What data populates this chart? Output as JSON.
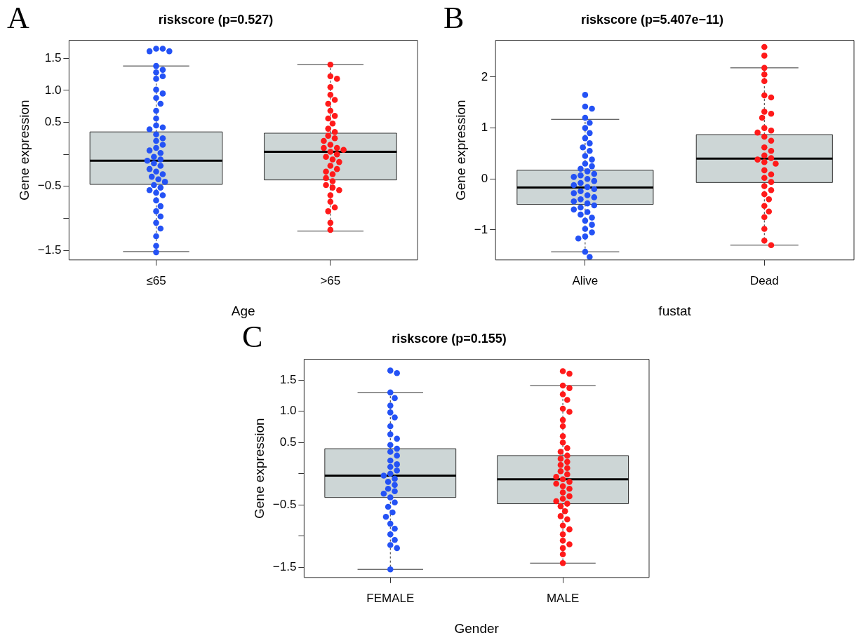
{
  "chart_data": [
    {
      "type": "box",
      "title": "riskscore (p=0.527)",
      "xlabel": "Age",
      "ylabel": "Gene expression",
      "annotations": [
        "A"
      ],
      "categories": [
        "≤65",
        ">65"
      ],
      "color": "#cdd6d6",
      "ylim": [
        -1.65,
        1.78
      ],
      "yticks": [
        {
          "value": -1.5,
          "label": "−1.5"
        },
        {
          "value": -1,
          "label": null
        },
        {
          "value": -0.5,
          "label": "−0.5"
        },
        {
          "value": 0,
          "label": null
        },
        {
          "value": 0.5,
          "label": "0.5"
        },
        {
          "value": 1,
          "label": "1.0"
        },
        {
          "value": 1.5,
          "label": "1.5"
        }
      ],
      "boxes": [
        {
          "low": -1.52,
          "q1": -0.47,
          "median": -0.1,
          "q3": 0.35,
          "high": 1.38
        },
        {
          "low": -1.2,
          "q1": -0.4,
          "median": 0.04,
          "q3": 0.33,
          "high": 1.4
        }
      ],
      "series": [
        {
          "type": "scatter",
          "color": "#2452f5",
          "x": [
            "≤65",
            "≤65",
            "≤65",
            "≤65",
            "≤65",
            "≤65",
            "≤65",
            "≤65",
            "≤65",
            "≤65",
            "≤65",
            "≤65",
            "≤65",
            "≤65",
            "≤65",
            "≤65",
            "≤65",
            "≤65",
            "≤65",
            "≤65",
            "≤65",
            "≤65",
            "≤65",
            "≤65",
            "≤65",
            "≤65",
            "≤65",
            "≤65",
            "≤65",
            "≤65",
            "≤65",
            "≤65",
            "≤65",
            "≤65",
            "≤65",
            "≤65",
            "≤65",
            "≤65",
            "≤65",
            "≤65",
            "≤65",
            "≤65",
            "≤65",
            "≤65",
            "≤65",
            "≤65",
            "≤65",
            "≤65",
            "≤65",
            "≤65"
          ],
          "values": [
            1.65,
            1.65,
            1.61,
            1.61,
            1.38,
            1.32,
            1.28,
            1.22,
            1.18,
            1.01,
            0.95,
            0.88,
            0.79,
            0.68,
            0.56,
            0.45,
            0.42,
            0.39,
            0.31,
            0.25,
            0.21,
            0.15,
            0.1,
            0.06,
            0.02,
            -0.04,
            -0.08,
            -0.1,
            -0.14,
            -0.18,
            -0.23,
            -0.27,
            -0.31,
            -0.35,
            -0.39,
            -0.43,
            -0.48,
            -0.52,
            -0.56,
            -0.6,
            -0.64,
            -0.72,
            -0.81,
            -0.89,
            -0.97,
            -1.07,
            -1.16,
            -1.28,
            -1.43,
            -1.53
          ]
        },
        {
          "type": "scatter",
          "color": "#ff1a1a",
          "x": [
            ">65",
            ">65",
            ">65",
            ">65",
            ">65",
            ">65",
            ">65",
            ">65",
            ">65",
            ">65",
            ">65",
            ">65",
            ">65",
            ">65",
            ">65",
            ">65",
            ">65",
            ">65",
            ">65",
            ">65",
            ">65",
            ">65",
            ">65",
            ">65",
            ">65",
            ">65",
            ">65",
            ">65",
            ">65",
            ">65",
            ">65",
            ">65",
            ">65",
            ">65",
            ">65",
            ">65",
            ">65",
            ">65",
            ">65",
            ">65"
          ],
          "values": [
            1.4,
            1.22,
            1.18,
            1.05,
            0.93,
            0.85,
            0.79,
            0.68,
            0.6,
            0.56,
            0.48,
            0.4,
            0.35,
            0.29,
            0.25,
            0.21,
            0.15,
            0.1,
            0.1,
            0.07,
            0.04,
            0.0,
            -0.04,
            -0.08,
            -0.12,
            -0.18,
            -0.23,
            -0.27,
            -0.31,
            -0.37,
            -0.42,
            -0.48,
            -0.52,
            -0.56,
            -0.64,
            -0.74,
            -0.83,
            -0.89,
            -1.07,
            -1.18
          ]
        }
      ]
    },
    {
      "type": "box",
      "title": "riskscore (p=5.407e−11)",
      "xlabel": "fustat",
      "ylabel": "Gene expression",
      "annotations": [
        "B"
      ],
      "categories": [
        "Alive",
        "Dead"
      ],
      "color": "#cdd6d6",
      "ylim": [
        -1.59,
        2.72
      ],
      "yticks": [
        {
          "value": -1,
          "label": "−1"
        },
        0,
        1,
        2
      ],
      "boxes": [
        {
          "low": -1.43,
          "q1": -0.5,
          "median": -0.17,
          "q3": 0.17,
          "high": 1.17
        },
        {
          "low": -1.3,
          "q1": -0.07,
          "median": 0.4,
          "q3": 0.87,
          "high": 2.18
        }
      ],
      "series": [
        {
          "type": "scatter",
          "color": "#2452f5",
          "x": [
            "Alive",
            "Alive",
            "Alive",
            "Alive",
            "Alive",
            "Alive",
            "Alive",
            "Alive",
            "Alive",
            "Alive",
            "Alive",
            "Alive",
            "Alive",
            "Alive",
            "Alive",
            "Alive",
            "Alive",
            "Alive",
            "Alive",
            "Alive",
            "Alive",
            "Alive",
            "Alive",
            "Alive",
            "Alive",
            "Alive",
            "Alive",
            "Alive",
            "Alive",
            "Alive",
            "Alive",
            "Alive",
            "Alive",
            "Alive",
            "Alive",
            "Alive",
            "Alive",
            "Alive",
            "Alive",
            "Alive",
            "Alive",
            "Alive",
            "Alive",
            "Alive",
            "Alive",
            "Alive",
            "Alive"
          ],
          "values": [
            1.65,
            1.42,
            1.38,
            1.2,
            1.1,
            1.0,
            0.9,
            0.8,
            0.7,
            0.62,
            0.55,
            0.45,
            0.38,
            0.3,
            0.25,
            0.2,
            0.15,
            0.1,
            0.07,
            0.04,
            0.0,
            -0.04,
            -0.08,
            -0.12,
            -0.16,
            -0.2,
            -0.24,
            -0.28,
            -0.32,
            -0.36,
            -0.4,
            -0.44,
            -0.48,
            -0.52,
            -0.56,
            -0.6,
            -0.65,
            -0.7,
            -0.76,
            -0.82,
            -0.9,
            -0.98,
            -1.05,
            -1.13,
            -1.17,
            -1.43,
            -1.53
          ]
        },
        {
          "type": "scatter",
          "color": "#ff1a1a",
          "x": [
            "Dead",
            "Dead",
            "Dead",
            "Dead",
            "Dead",
            "Dead",
            "Dead",
            "Dead",
            "Dead",
            "Dead",
            "Dead",
            "Dead",
            "Dead",
            "Dead",
            "Dead",
            "Dead",
            "Dead",
            "Dead",
            "Dead",
            "Dead",
            "Dead",
            "Dead",
            "Dead",
            "Dead",
            "Dead",
            "Dead",
            "Dead",
            "Dead",
            "Dead",
            "Dead",
            "Dead",
            "Dead",
            "Dead",
            "Dead",
            "Dead",
            "Dead"
          ],
          "values": [
            2.59,
            2.42,
            2.18,
            2.05,
            1.92,
            1.64,
            1.6,
            1.32,
            1.28,
            1.2,
            1.0,
            0.95,
            0.91,
            0.83,
            0.75,
            0.62,
            0.55,
            0.46,
            0.41,
            0.38,
            0.33,
            0.3,
            0.17,
            0.09,
            0.02,
            -0.06,
            -0.14,
            -0.22,
            -0.3,
            -0.4,
            -0.53,
            -0.64,
            -0.75,
            -0.98,
            -1.21,
            -1.3
          ]
        }
      ]
    },
    {
      "type": "box",
      "title": "riskscore (p=0.155)",
      "xlabel": "Gender",
      "ylabel": "Gene expression",
      "annotations": [
        "C"
      ],
      "categories": [
        "FEMALE",
        "MALE"
      ],
      "color": "#cdd6d6",
      "ylim": [
        -1.66,
        1.83
      ],
      "yticks": [
        {
          "value": -1.5,
          "label": "−1.5"
        },
        {
          "value": -1,
          "label": null
        },
        {
          "value": -0.5,
          "label": "−0.5"
        },
        {
          "value": 0,
          "label": null
        },
        {
          "value": 0.5,
          "label": "0.5"
        },
        {
          "value": 1,
          "label": "1.0"
        },
        {
          "value": 1.5,
          "label": "1.5"
        }
      ],
      "boxes": [
        {
          "low": -1.53,
          "q1": -0.38,
          "median": -0.03,
          "q3": 0.4,
          "high": 1.3
        },
        {
          "low": -1.43,
          "q1": -0.48,
          "median": -0.09,
          "q3": 0.29,
          "high": 1.41
        }
      ],
      "series": [
        {
          "type": "scatter",
          "color": "#2452f5",
          "x": [
            "FEMALE",
            "FEMALE",
            "FEMALE",
            "FEMALE",
            "FEMALE",
            "FEMALE",
            "FEMALE",
            "FEMALE",
            "FEMALE",
            "FEMALE",
            "FEMALE",
            "FEMALE",
            "FEMALE",
            "FEMALE",
            "FEMALE",
            "FEMALE",
            "FEMALE",
            "FEMALE",
            "FEMALE",
            "FEMALE",
            "FEMALE",
            "FEMALE",
            "FEMALE",
            "FEMALE",
            "FEMALE",
            "FEMALE",
            "FEMALE",
            "FEMALE",
            "FEMALE",
            "FEMALE",
            "FEMALE",
            "FEMALE",
            "FEMALE",
            "FEMALE",
            "FEMALE",
            "FEMALE",
            "FEMALE",
            "FEMALE"
          ],
          "values": [
            1.65,
            1.61,
            1.3,
            1.21,
            1.09,
            0.98,
            0.9,
            0.76,
            0.63,
            0.56,
            0.46,
            0.4,
            0.35,
            0.29,
            0.21,
            0.15,
            0.11,
            0.05,
            0.0,
            -0.03,
            -0.08,
            -0.13,
            -0.18,
            -0.24,
            -0.28,
            -0.32,
            -0.38,
            -0.46,
            -0.53,
            -0.62,
            -0.69,
            -0.8,
            -0.88,
            -0.97,
            -1.06,
            -1.14,
            -1.19,
            -1.53
          ]
        },
        {
          "type": "scatter",
          "color": "#ff1a1a",
          "x": [
            "MALE",
            "MALE",
            "MALE",
            "MALE",
            "MALE",
            "MALE",
            "MALE",
            "MALE",
            "MALE",
            "MALE",
            "MALE",
            "MALE",
            "MALE",
            "MALE",
            "MALE",
            "MALE",
            "MALE",
            "MALE",
            "MALE",
            "MALE",
            "MALE",
            "MALE",
            "MALE",
            "MALE",
            "MALE",
            "MALE",
            "MALE",
            "MALE",
            "MALE",
            "MALE",
            "MALE",
            "MALE",
            "MALE",
            "MALE",
            "MALE",
            "MALE",
            "MALE",
            "MALE",
            "MALE",
            "MALE",
            "MALE",
            "MALE",
            "MALE",
            "MALE"
          ],
          "values": [
            1.64,
            1.6,
            1.41,
            1.37,
            1.27,
            1.18,
            1.04,
            0.99,
            0.86,
            0.76,
            0.6,
            0.5,
            0.41,
            0.35,
            0.29,
            0.24,
            0.19,
            0.14,
            0.09,
            0.04,
            -0.01,
            -0.05,
            -0.09,
            -0.13,
            -0.16,
            -0.2,
            -0.24,
            -0.3,
            -0.36,
            -0.4,
            -0.44,
            -0.48,
            -0.52,
            -0.6,
            -0.68,
            -0.73,
            -0.83,
            -0.89,
            -0.97,
            -1.07,
            -1.13,
            -1.19,
            -1.29,
            -1.43
          ]
        }
      ]
    }
  ]
}
